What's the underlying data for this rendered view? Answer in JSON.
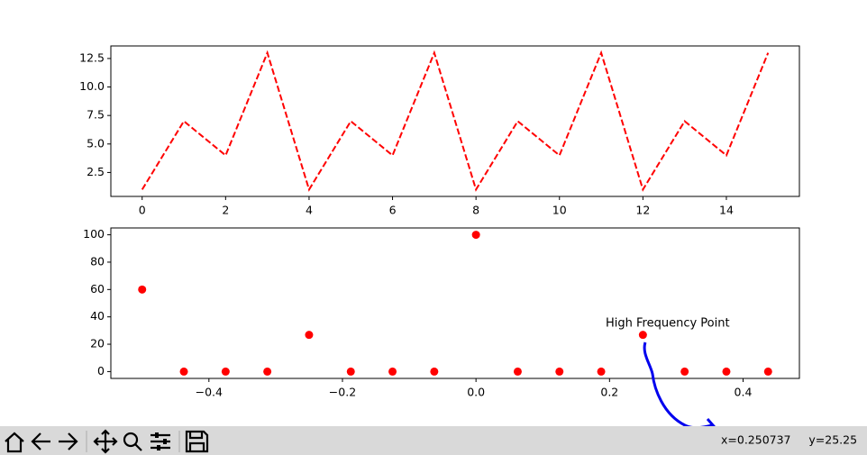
{
  "chart_data": [
    {
      "type": "line",
      "x": [
        0,
        1,
        2,
        3,
        4,
        5,
        6,
        7,
        8,
        9,
        10,
        11,
        12,
        13,
        14,
        15
      ],
      "values": [
        1,
        7,
        4,
        13,
        1,
        7,
        4,
        13,
        1,
        7,
        4,
        13,
        1,
        7,
        4,
        13
      ],
      "color": "#ff0000",
      "linestyle": "dashed",
      "xlim": [
        -0.75,
        15.75
      ],
      "xticks": [
        0,
        2,
        4,
        6,
        8,
        10,
        12,
        14
      ],
      "ylim": [
        0.4,
        13.6
      ],
      "yticks": [
        2.5,
        {
          "value": 5,
          "label": "5.0"
        },
        7.5,
        {
          "value": 10,
          "label": "10.0"
        },
        12.5
      ]
    },
    {
      "type": "scatter",
      "x": [
        0,
        0.0625,
        0.125,
        0.1875,
        0.25,
        0.3125,
        0.375,
        0.4375,
        -0.5,
        -0.4375,
        -0.375,
        -0.3125,
        -0.25,
        -0.1875,
        -0.125,
        -0.0625
      ],
      "values": [
        100,
        0,
        0,
        0,
        26.83,
        0,
        0,
        0,
        60,
        0,
        0,
        0,
        26.83,
        0,
        0,
        0
      ],
      "color": "#ff0000",
      "xlim": [
        -0.546875,
        0.484375
      ],
      "xticks": [
        {
          "value": -0.4,
          "label": "−0.4"
        },
        {
          "value": -0.2,
          "label": "−0.2"
        },
        {
          "value": 0,
          "label": "0.0"
        },
        0.2,
        0.4
      ],
      "ylim": [
        -5,
        105
      ],
      "yticks": [
        0,
        20,
        40,
        60,
        80,
        100
      ],
      "annotation": "High Frequency Point"
    }
  ],
  "toolbar": {
    "status": "x=0.250737     y=25.25"
  }
}
